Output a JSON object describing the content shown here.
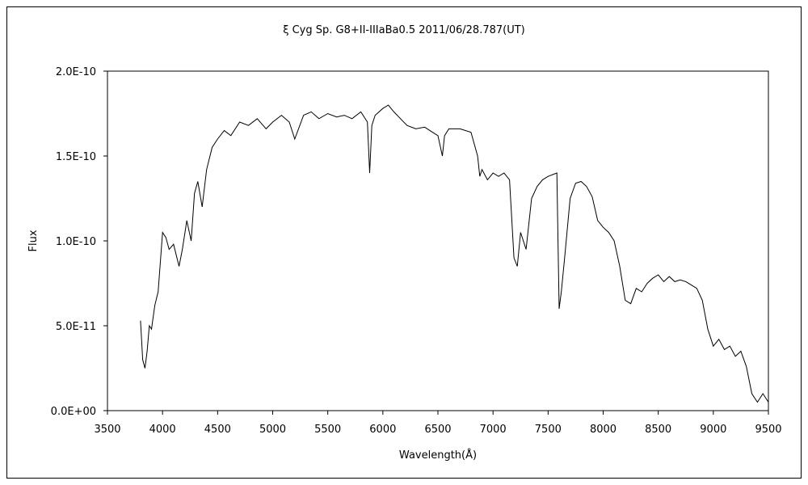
{
  "chart_data": {
    "type": "line",
    "title": "ξ Cyg   Sp. G8+II-IIIaBa0.5    2011/06/28.787(UT)",
    "xlabel": "Wavelength(Å)",
    "ylabel": "Flux",
    "xlim": [
      3500,
      9500
    ],
    "ylim": [
      0,
      2e-10
    ],
    "x_ticks": [
      3500,
      4000,
      4500,
      5000,
      5500,
      6000,
      6500,
      7000,
      7500,
      8000,
      8500,
      9000,
      9500
    ],
    "x_tick_labels": [
      "3500",
      "4000",
      "4500",
      "5000",
      "5500",
      "6000",
      "6500",
      "7000",
      "7500",
      "8000",
      "8500",
      "9000",
      "9500"
    ],
    "y_ticks": [
      0,
      5e-11,
      1e-10,
      1.5e-10,
      2e-10
    ],
    "y_tick_labels": [
      "0.0E+00",
      "5.0E-11",
      "1.0E-10",
      "1.5E-10",
      "2.0E-10"
    ],
    "grid": false,
    "legend": "none",
    "series": [
      {
        "color": "#000000",
        "x": [
          3800,
          3820,
          3840,
          3860,
          3880,
          3900,
          3930,
          3960,
          4000,
          4030,
          4060,
          4100,
          4150,
          4180,
          4220,
          4260,
          4290,
          4320,
          4360,
          4400,
          4450,
          4500,
          4560,
          4620,
          4700,
          4780,
          4860,
          4940,
          5000,
          5080,
          5150,
          5200,
          5280,
          5350,
          5420,
          5500,
          5580,
          5650,
          5720,
          5800,
          5860,
          5880,
          5900,
          5930,
          6000,
          6050,
          6100,
          6160,
          6220,
          6300,
          6380,
          6450,
          6500,
          6540,
          6560,
          6600,
          6700,
          6800,
          6860,
          6880,
          6900,
          6950,
          7000,
          7050,
          7100,
          7150,
          7190,
          7220,
          7250,
          7300,
          7350,
          7400,
          7450,
          7500,
          7580,
          7600,
          7620,
          7650,
          7700,
          7750,
          7800,
          7850,
          7900,
          7950,
          8000,
          8050,
          8100,
          8150,
          8200,
          8250,
          8300,
          8350,
          8400,
          8450,
          8500,
          8550,
          8600,
          8650,
          8700,
          8750,
          8800,
          8850,
          8900,
          8950,
          9000,
          9050,
          9100,
          9150,
          9200,
          9250,
          9300,
          9350,
          9400,
          9450,
          9500
        ],
        "y": [
          5.3e-11,
          3e-11,
          2.5e-11,
          3.5e-11,
          5e-11,
          4.8e-11,
          6.2e-11,
          7e-11,
          1.05e-10,
          1.02e-10,
          9.5e-11,
          9.8e-11,
          8.5e-11,
          9.5e-11,
          1.12e-10,
          1e-10,
          1.28e-10,
          1.35e-10,
          1.2e-10,
          1.42e-10,
          1.55e-10,
          1.6e-10,
          1.65e-10,
          1.62e-10,
          1.7e-10,
          1.68e-10,
          1.72e-10,
          1.66e-10,
          1.7e-10,
          1.74e-10,
          1.7e-10,
          1.6e-10,
          1.74e-10,
          1.76e-10,
          1.72e-10,
          1.75e-10,
          1.73e-10,
          1.74e-10,
          1.72e-10,
          1.76e-10,
          1.7e-10,
          1.4e-10,
          1.68e-10,
          1.74e-10,
          1.78e-10,
          1.8e-10,
          1.76e-10,
          1.72e-10,
          1.68e-10,
          1.66e-10,
          1.67e-10,
          1.64e-10,
          1.62e-10,
          1.5e-10,
          1.62e-10,
          1.66e-10,
          1.66e-10,
          1.64e-10,
          1.5e-10,
          1.38e-10,
          1.42e-10,
          1.36e-10,
          1.4e-10,
          1.38e-10,
          1.4e-10,
          1.36e-10,
          9e-11,
          8.5e-11,
          1.05e-10,
          9.5e-11,
          1.25e-10,
          1.32e-10,
          1.36e-10,
          1.38e-10,
          1.4e-10,
          6e-11,
          7e-11,
          9e-11,
          1.25e-10,
          1.34e-10,
          1.35e-10,
          1.32e-10,
          1.26e-10,
          1.12e-10,
          1.08e-10,
          1.05e-10,
          1e-10,
          8.5e-11,
          6.5e-11,
          6.3e-11,
          7.2e-11,
          7e-11,
          7.5e-11,
          7.8e-11,
          8e-11,
          7.6e-11,
          7.9e-11,
          7.6e-11,
          7.7e-11,
          7.6e-11,
          7.4e-11,
          7.2e-11,
          6.5e-11,
          4.8e-11,
          3.8e-11,
          4.2e-11,
          3.6e-11,
          3.8e-11,
          3.2e-11,
          3.5e-11,
          2.6e-11,
          1e-11,
          5e-12,
          1e-11,
          5e-12
        ]
      }
    ]
  }
}
